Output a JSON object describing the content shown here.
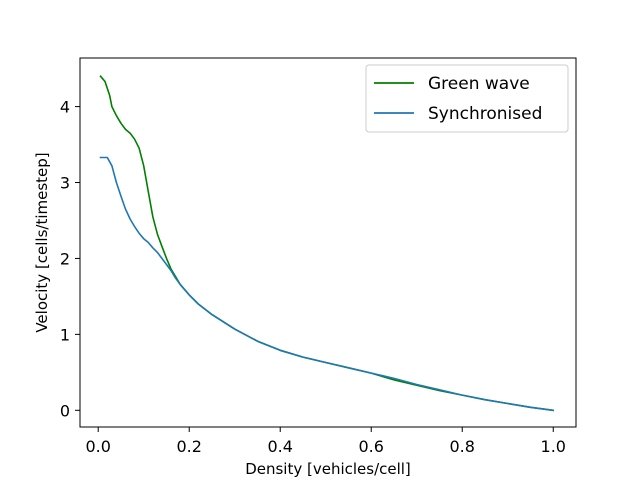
{
  "chart_data": {
    "type": "line",
    "title": "",
    "xlabel": "Density [vehicles/cell]",
    "ylabel": "Velocity [cells/timestep]",
    "xlim": [
      -0.04,
      1.05
    ],
    "ylim": [
      -0.22,
      4.64
    ],
    "xticks": [
      0.0,
      0.2,
      0.4,
      0.6,
      0.8,
      1.0
    ],
    "xtick_labels": [
      "0.0",
      "0.2",
      "0.4",
      "0.6",
      "0.8",
      "1.0"
    ],
    "yticks": [
      0,
      1,
      2,
      3,
      4
    ],
    "ytick_labels": [
      "0",
      "1",
      "2",
      "3",
      "4"
    ],
    "grid": false,
    "legend_position": "top-right",
    "series": [
      {
        "name": "Green wave",
        "color": "#008000",
        "points": [
          [
            0.005,
            4.4
          ],
          [
            0.015,
            4.33
          ],
          [
            0.025,
            4.15
          ],
          [
            0.03,
            4.0
          ],
          [
            0.04,
            3.88
          ],
          [
            0.05,
            3.78
          ],
          [
            0.06,
            3.7
          ],
          [
            0.07,
            3.65
          ],
          [
            0.08,
            3.57
          ],
          [
            0.09,
            3.45
          ],
          [
            0.1,
            3.22
          ],
          [
            0.11,
            2.88
          ],
          [
            0.12,
            2.55
          ],
          [
            0.13,
            2.32
          ],
          [
            0.14,
            2.16
          ],
          [
            0.15,
            2.0
          ],
          [
            0.16,
            1.86
          ],
          [
            0.17,
            1.76
          ],
          [
            0.18,
            1.66
          ],
          [
            0.2,
            1.52
          ],
          [
            0.22,
            1.4
          ],
          [
            0.25,
            1.26
          ],
          [
            0.3,
            1.07
          ],
          [
            0.35,
            0.91
          ],
          [
            0.4,
            0.79
          ],
          [
            0.45,
            0.7
          ],
          [
            0.5,
            0.63
          ],
          [
            0.55,
            0.56
          ],
          [
            0.6,
            0.49
          ],
          [
            0.65,
            0.4
          ],
          [
            0.7,
            0.33
          ],
          [
            0.75,
            0.26
          ],
          [
            0.8,
            0.2
          ],
          [
            0.85,
            0.14
          ],
          [
            0.9,
            0.09
          ],
          [
            0.95,
            0.04
          ],
          [
            1.0,
            0.0
          ]
        ]
      },
      {
        "name": "Synchronised",
        "color": "#1f77b4",
        "points": [
          [
            0.005,
            3.33
          ],
          [
            0.015,
            3.33
          ],
          [
            0.02,
            3.33
          ],
          [
            0.03,
            3.22
          ],
          [
            0.04,
            3.0
          ],
          [
            0.05,
            2.82
          ],
          [
            0.06,
            2.65
          ],
          [
            0.07,
            2.52
          ],
          [
            0.08,
            2.42
          ],
          [
            0.09,
            2.33
          ],
          [
            0.1,
            2.26
          ],
          [
            0.11,
            2.21
          ],
          [
            0.12,
            2.14
          ],
          [
            0.13,
            2.08
          ],
          [
            0.14,
            2.0
          ],
          [
            0.15,
            1.92
          ],
          [
            0.16,
            1.84
          ],
          [
            0.17,
            1.74
          ],
          [
            0.18,
            1.66
          ],
          [
            0.2,
            1.52
          ],
          [
            0.22,
            1.4
          ],
          [
            0.25,
            1.26
          ],
          [
            0.3,
            1.07
          ],
          [
            0.35,
            0.91
          ],
          [
            0.4,
            0.79
          ],
          [
            0.45,
            0.7
          ],
          [
            0.5,
            0.63
          ],
          [
            0.55,
            0.56
          ],
          [
            0.6,
            0.49
          ],
          [
            0.65,
            0.42
          ],
          [
            0.7,
            0.34
          ],
          [
            0.75,
            0.27
          ],
          [
            0.8,
            0.2
          ],
          [
            0.85,
            0.14
          ],
          [
            0.9,
            0.09
          ],
          [
            0.95,
            0.04
          ],
          [
            1.0,
            0.0
          ]
        ]
      }
    ]
  }
}
